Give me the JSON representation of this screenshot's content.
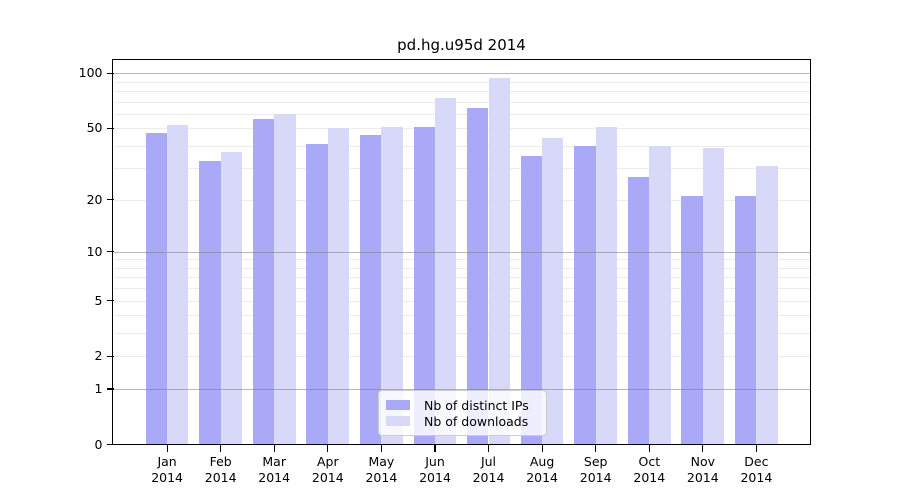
{
  "chart_data": {
    "type": "bar",
    "title": "pd.hg.u95d 2014",
    "categories": [
      "Jan",
      "Feb",
      "Mar",
      "Apr",
      "May",
      "Jun",
      "Jul",
      "Aug",
      "Sep",
      "Oct",
      "Nov",
      "Dec"
    ],
    "x_year_label": "2014",
    "series": [
      {
        "name": "Nb of distinct IPs",
        "color": "#a9a9f8",
        "values": [
          47,
          33,
          56,
          41,
          46,
          51,
          65,
          35,
          40,
          27,
          21,
          21
        ]
      },
      {
        "name": "Nb of downloads",
        "color": "#d8d8f8",
        "values": [
          52,
          37,
          60,
          50,
          51,
          73,
          94,
          44,
          51,
          40,
          39,
          31
        ]
      }
    ],
    "y_scale": "log10(1+x)",
    "y_ticks": [
      0,
      1,
      2,
      5,
      10,
      20,
      50,
      100
    ],
    "y_major_gridlines": [
      1,
      10,
      100
    ],
    "y_minor_gridlines": [
      2,
      3,
      4,
      5,
      6,
      7,
      8,
      9,
      20,
      30,
      40,
      50,
      60,
      70,
      80,
      90
    ],
    "ylim": [
      0,
      100
    ],
    "grid": "horizontal",
    "legend_position": "lower-center-inside",
    "colors": {
      "minor_grid": "#ececec",
      "major_grid_rgba": "rgba(125,125,125,0.55)",
      "axis": "#000000",
      "text": "#000000"
    }
  }
}
